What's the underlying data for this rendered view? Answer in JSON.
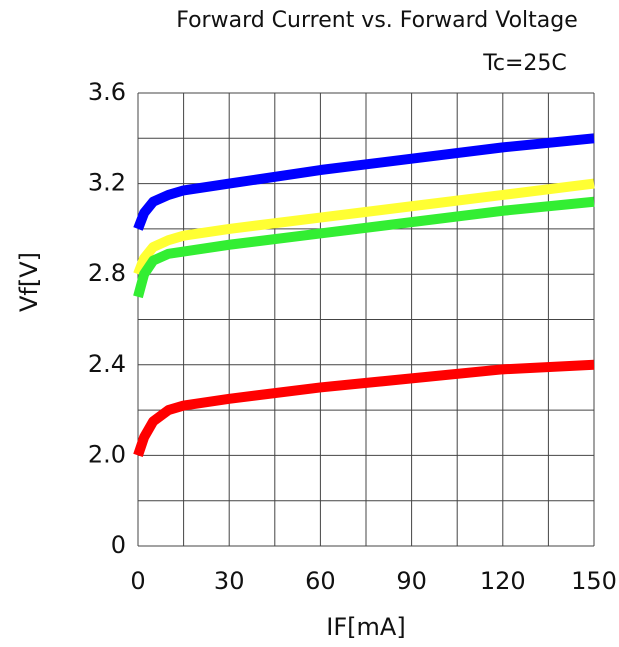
{
  "chart_data": {
    "type": "line",
    "title": "Forward Current vs. Forward Voltage",
    "subtitle": "Tc=25C",
    "x_label": "IF[mA]",
    "y_label": "Vf[V]",
    "x": [
      0,
      2,
      5,
      10,
      15,
      30,
      60,
      90,
      120,
      150
    ],
    "series": [
      {
        "color": "#0000ff",
        "values": [
          3.0,
          3.07,
          3.12,
          3.15,
          3.17,
          3.2,
          3.26,
          3.31,
          3.36,
          3.4
        ]
      },
      {
        "color": "#ffff33",
        "values": [
          2.8,
          2.87,
          2.92,
          2.95,
          2.97,
          3.0,
          3.05,
          3.1,
          3.15,
          3.2
        ]
      },
      {
        "color": "#33ee33",
        "values": [
          2.7,
          2.8,
          2.86,
          2.89,
          2.9,
          2.93,
          2.98,
          3.03,
          3.08,
          3.12
        ]
      },
      {
        "color": "#ff0000",
        "values": [
          2.0,
          2.08,
          2.15,
          2.2,
          2.22,
          2.25,
          2.3,
          2.34,
          2.38,
          2.4
        ]
      }
    ],
    "xlim": [
      0,
      150
    ],
    "xticks": [
      0,
      30,
      60,
      90,
      120,
      150
    ],
    "ylim": [
      0,
      3.6
    ],
    "yticks": [
      0,
      {
        "value": 2,
        "label": "2.0"
      },
      2.4,
      2.8,
      3.2,
      3.6
    ],
    "axis_break": true,
    "grid": true
  }
}
